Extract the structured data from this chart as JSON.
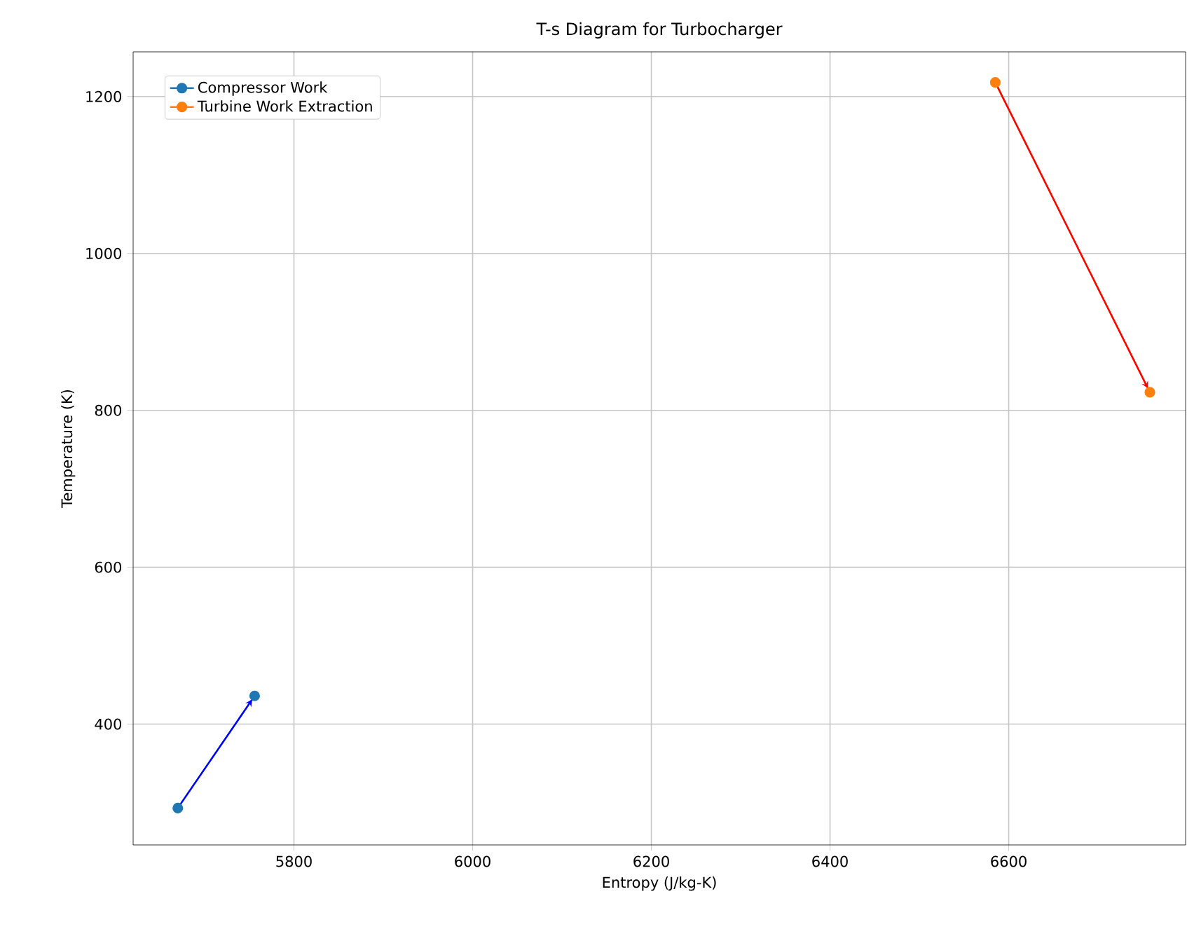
{
  "chart_data": {
    "type": "line",
    "title": "T-s Diagram for Turbocharger",
    "xlabel": "Entropy (J/kg-K)",
    "ylabel": "Temperature (K)",
    "series": [
      {
        "name": "Compressor Work",
        "color": "#1f77b4",
        "x": [
          5670,
          5756
        ],
        "values": [
          293,
          436
        ]
      },
      {
        "name": "Turbine Work Extraction",
        "color": "#ff7f0e",
        "x": [
          6585,
          6758
        ],
        "values": [
          1218,
          823
        ]
      }
    ],
    "xlim": [
      5620,
      6798
    ],
    "ylim": [
      246,
      1257
    ],
    "xticks": [
      5800,
      6000,
      6200,
      6400,
      6600
    ],
    "yticks": [
      400,
      600,
      800,
      1000,
      1200
    ],
    "grid": true,
    "legend": "top left",
    "marker": "circle",
    "line_style": "solid"
  }
}
